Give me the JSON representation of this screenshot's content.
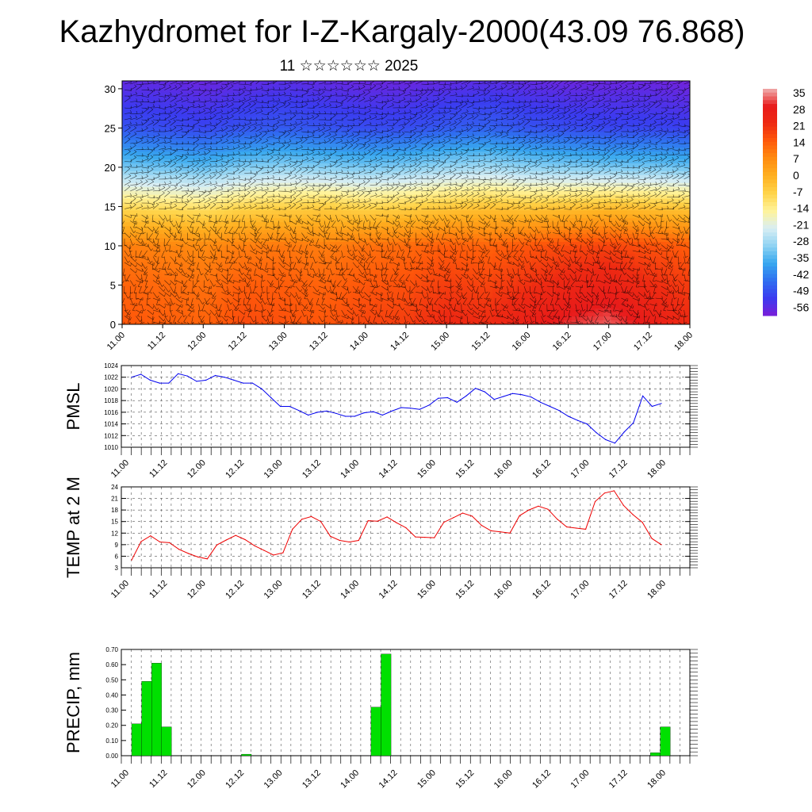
{
  "title": "Kazhydromet for I-Z-Kargaly-2000(43.09 76.868)",
  "subtitle": "11 ☆☆☆☆☆☆ 2025",
  "x_labels": [
    "11.00",
    "11.12",
    "12.00",
    "12.12",
    "13.00",
    "13.12",
    "14.00",
    "14.12",
    "15.00",
    "15.12",
    "16.00",
    "16.12",
    "17.00",
    "17.12",
    "18.00"
  ],
  "chart_data": [
    {
      "type": "heatmap",
      "description_series": "temperature with wind barbs",
      "x_range": [
        "11.00",
        "18.00"
      ],
      "ylim": [
        0,
        31
      ],
      "y_ticks": [
        0,
        5,
        10,
        15,
        20,
        25,
        30
      ],
      "colorbar": {
        "labels": [
          "35",
          "28",
          "21",
          "14",
          "7",
          "0",
          "-7",
          "-14",
          "-21",
          "-28",
          "-35",
          "-42",
          "-49",
          "-56"
        ],
        "range": [
          -63,
          35
        ],
        "colors": [
          "#7a1ed9",
          "#3b3bf0",
          "#2f6ff0",
          "#38a8ef",
          "#8fd3f3",
          "#d9eef3",
          "#fff39a",
          "#ffd44a",
          "#ffb020",
          "#ff8c10",
          "#ff5a0a",
          "#ee2a12",
          "#e81a1a",
          "#f0b0b0"
        ]
      },
      "levels": [
        {
          "level": 0,
          "values": [
            13,
            12,
            11,
            15,
            14,
            13,
            16,
            17,
            21,
            20,
            25,
            29,
            31,
            26,
            20
          ]
        },
        {
          "level": 5,
          "values": [
            11,
            10,
            9,
            12,
            12,
            11,
            13,
            14,
            17,
            16,
            19,
            22,
            24,
            20,
            17
          ]
        },
        {
          "level": 10,
          "values": [
            7,
            6,
            5,
            7,
            8,
            7,
            9,
            10,
            12,
            11,
            13,
            15,
            16,
            14,
            12
          ]
        },
        {
          "level": 15,
          "values": [
            -12,
            -13,
            -14,
            -11,
            -10,
            -9,
            -11,
            -10,
            -8,
            -7,
            -8,
            -7,
            -6,
            -7,
            -8
          ]
        },
        {
          "level": 20,
          "values": [
            -35,
            -36,
            -37,
            -34,
            -33,
            -34,
            -35,
            -34,
            -32,
            -31,
            -33,
            -34,
            -35,
            -35,
            -36
          ]
        },
        {
          "level": 25,
          "values": [
            -52,
            -53,
            -54,
            -52,
            -51,
            -52,
            -53,
            -53,
            -51,
            -50,
            -52,
            -53,
            -54,
            -54,
            -55
          ]
        },
        {
          "level": 31,
          "values": [
            -60,
            -60,
            -61,
            -60,
            -59,
            -60,
            -61,
            -61,
            -60,
            -59,
            -60,
            -61,
            -61,
            -61,
            -62
          ]
        }
      ]
    },
    {
      "type": "line",
      "ylabel": "PMSL",
      "ylim": [
        1010,
        1024
      ],
      "y_ticks": [
        1010,
        1012,
        1014,
        1016,
        1018,
        1020,
        1022,
        1024
      ],
      "color": "#0000ee",
      "values": [
        1022.0,
        1022.5,
        1021.5,
        1021.0,
        1021.0,
        1022.6,
        1022.2,
        1021.3,
        1021.5,
        1022.3,
        1022.0,
        1021.5,
        1021.0,
        1021.0,
        1020.0,
        1018.5,
        1017.0,
        1017.0,
        1016.3,
        1015.5,
        1016.0,
        1016.2,
        1015.8,
        1015.3,
        1015.3,
        1015.9,
        1016.1,
        1015.5,
        1016.2,
        1016.8,
        1016.7,
        1016.5,
        1017.2,
        1018.4,
        1018.5,
        1017.7,
        1018.8,
        1020.1,
        1019.5,
        1018.2,
        1018.7,
        1019.2,
        1019.0,
        1018.6,
        1017.7,
        1017.0,
        1016.3,
        1015.3,
        1014.6,
        1014.0,
        1012.5,
        1011.3,
        1010.7,
        1012.6,
        1014.2,
        1018.8,
        1017.0,
        1017.5
      ]
    },
    {
      "type": "line",
      "ylabel": "TEMP at 2 M",
      "ylim": [
        3,
        24
      ],
      "y_ticks": [
        3,
        6,
        9,
        12,
        15,
        18,
        21,
        24
      ],
      "color": "#ee0000",
      "values": [
        5.0,
        9.8,
        11.3,
        9.7,
        9.5,
        7.8,
        6.7,
        5.8,
        5.3,
        8.9,
        10.2,
        11.4,
        10.3,
        8.7,
        7.5,
        6.3,
        6.9,
        13.0,
        15.6,
        16.3,
        15.0,
        11.2,
        10.1,
        9.7,
        10.1,
        15.2,
        15.1,
        16.2,
        14.7,
        13.4,
        11.0,
        10.9,
        10.8,
        14.8,
        16.0,
        17.2,
        16.4,
        14.0,
        12.6,
        12.3,
        12.0,
        16.5,
        18.0,
        19.0,
        18.2,
        15.6,
        13.6,
        13.3,
        13.0,
        20.2,
        22.4,
        23.0,
        19.2,
        16.8,
        14.8,
        10.6,
        9.0
      ]
    },
    {
      "type": "bar",
      "ylabel": "PRECIP, mm",
      "ylim": [
        0,
        0.7
      ],
      "y_ticks": [
        "0.00",
        "0.10",
        "0.20",
        "0.30",
        "0.40",
        "0.50",
        "0.60",
        "0.70"
      ],
      "color": "#00e000",
      "step_hours": 3,
      "bars": [
        {
          "x": "11.03",
          "value": 0.21
        },
        {
          "x": "11.06",
          "value": 0.49
        },
        {
          "x": "11.09",
          "value": 0.61
        },
        {
          "x": "11.12",
          "value": 0.19
        },
        {
          "x": "12.12",
          "value": 0.01
        },
        {
          "x": "14.03",
          "value": 0.32
        },
        {
          "x": "14.06",
          "value": 0.67
        },
        {
          "x": "17.15",
          "value": 0.02
        },
        {
          "x": "17.18",
          "value": 0.19
        }
      ]
    }
  ]
}
